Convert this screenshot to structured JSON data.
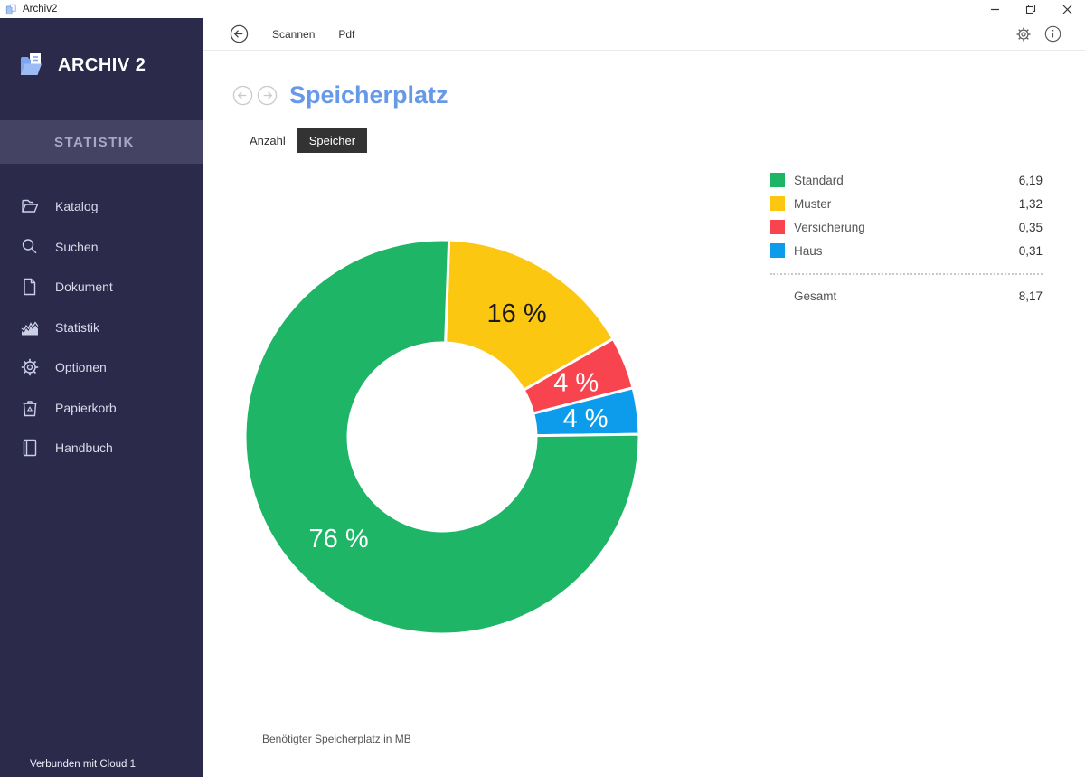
{
  "window": {
    "title": "Archiv2",
    "controls": {
      "minimize": "minimize",
      "restore": "restore",
      "close": "close"
    }
  },
  "colors": {
    "sidebar_bg": "#2b2a4a",
    "band_bg": "#454363",
    "accent": "#6699e8",
    "tab_active": "#333333"
  },
  "toolbar": {
    "items": [
      {
        "label": "Scannen"
      },
      {
        "label": "Pdf"
      }
    ]
  },
  "sidebar": {
    "app_name": "ARCHIV 2",
    "section": "STATISTIK",
    "items": [
      {
        "label": "Katalog",
        "icon": "folder"
      },
      {
        "label": "Suchen",
        "icon": "search"
      },
      {
        "label": "Dokument",
        "icon": "document"
      },
      {
        "label": "Statistik",
        "icon": "chart"
      },
      {
        "label": "Optionen",
        "icon": "gear"
      },
      {
        "label": "Papierkorb",
        "icon": "trash"
      },
      {
        "label": "Handbuch",
        "icon": "book"
      }
    ],
    "footer": "Verbunden mit Cloud 1"
  },
  "main": {
    "page_title": "Speicherplatz",
    "tabs": [
      {
        "label": "Anzahl",
        "active": false
      },
      {
        "label": "Speicher",
        "active": true
      }
    ],
    "caption": "Benötigter Speicherplatz in MB"
  },
  "chart_data": {
    "type": "pie",
    "donut": true,
    "title": "Speicherplatz",
    "unit": "MB",
    "start_angle_deg": 2,
    "slices": [
      {
        "name": "Muster",
        "value": 1.32,
        "display_value": "1,32",
        "pct_label": "16 %",
        "color": "#fcc711",
        "label_color": "#1a1a1a"
      },
      {
        "name": "Versicherung",
        "value": 0.35,
        "display_value": "0,35",
        "pct_label": "4 %",
        "color": "#f8444f",
        "label_color": "#ffffff"
      },
      {
        "name": "Haus",
        "value": 0.31,
        "display_value": "0,31",
        "pct_label": "4 %",
        "color": "#0d9cec",
        "label_color": "#ffffff"
      },
      {
        "name": "Standard",
        "value": 6.19,
        "display_value": "6,19",
        "pct_label": "76 %",
        "color": "#1fb567",
        "label_color": "#ffffff"
      }
    ],
    "legend": [
      {
        "name": "Standard",
        "display_value": "6,19",
        "color": "#1fb567"
      },
      {
        "name": "Muster",
        "display_value": "1,32",
        "color": "#fcc711"
      },
      {
        "name": "Versicherung",
        "display_value": "0,35",
        "color": "#f8444f"
      },
      {
        "name": "Haus",
        "display_value": "0,31",
        "color": "#0d9cec"
      }
    ],
    "total": {
      "label": "Gesamt",
      "value": 8.17,
      "display_value": "8,17"
    },
    "legend_position": "right"
  }
}
